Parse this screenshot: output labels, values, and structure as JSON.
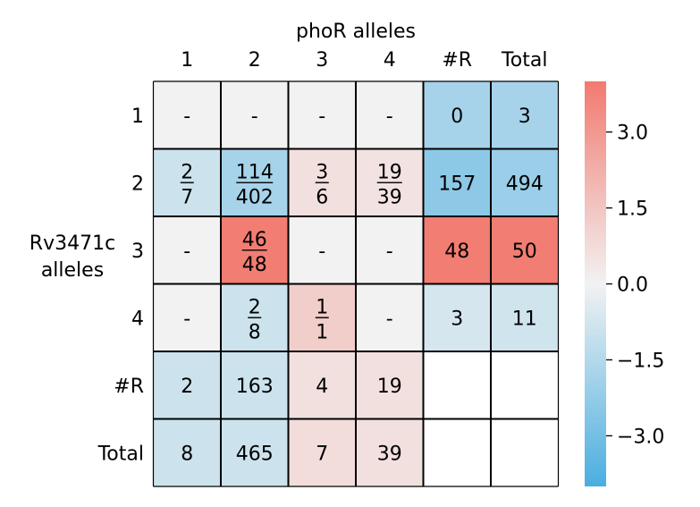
{
  "chart_data": {
    "type": "heatmap",
    "title": "phoR alleles",
    "xlabel": "phoR alleles",
    "ylabel_lines": [
      "Rv3471c",
      "alleles"
    ],
    "col_labels": [
      "1",
      "2",
      "3",
      "4",
      "#R",
      "Total"
    ],
    "row_labels": [
      "1",
      "2",
      "3",
      "4",
      "#R",
      "Total"
    ],
    "cells": [
      [
        {
          "text": "-",
          "score": 0
        },
        {
          "text": "-",
          "score": 0
        },
        {
          "text": "-",
          "score": 0
        },
        {
          "text": "-",
          "score": 0
        },
        {
          "text": "0",
          "score": -1.8
        },
        {
          "text": "3",
          "score": -1.8
        }
      ],
      [
        {
          "num": "2",
          "den": "7",
          "score": -0.9
        },
        {
          "num": "114",
          "den": "402",
          "score": -1.8
        },
        {
          "num": "3",
          "den": "6",
          "score": 0.6
        },
        {
          "num": "19",
          "den": "39",
          "score": 0.5
        },
        {
          "text": "157",
          "score": -2.4
        },
        {
          "text": "494",
          "score": -2.1
        }
      ],
      [
        {
          "text": "-",
          "score": 0
        },
        {
          "num": "46",
          "den": "48",
          "score": 3.9
        },
        {
          "text": "-",
          "score": 0
        },
        {
          "text": "-",
          "score": 0
        },
        {
          "text": "48",
          "score": 3.9
        },
        {
          "text": "50",
          "score": 3.9
        }
      ],
      [
        {
          "text": "-",
          "score": 0
        },
        {
          "num": "2",
          "den": "8",
          "score": -0.9
        },
        {
          "num": "1",
          "den": "1",
          "score": 1.2
        },
        {
          "text": "-",
          "score": 0
        },
        {
          "text": "3",
          "score": -0.7
        },
        {
          "text": "11",
          "score": -0.8
        }
      ],
      [
        {
          "text": "2",
          "score": -0.9
        },
        {
          "text": "163",
          "score": -0.9
        },
        {
          "text": "4",
          "score": 0.6
        },
        {
          "text": "19",
          "score": 0.6
        },
        {
          "text": "",
          "score": null
        },
        {
          "text": "",
          "score": null
        }
      ],
      [
        {
          "text": "8",
          "score": -0.9
        },
        {
          "text": "465",
          "score": -0.9
        },
        {
          "text": "7",
          "score": 0.7
        },
        {
          "text": "39",
          "score": 0.6
        },
        {
          "text": "",
          "score": null
        },
        {
          "text": "",
          "score": null
        }
      ]
    ],
    "colorbar": {
      "min": -4.0,
      "max": 4.0,
      "ticks": [
        3.0,
        1.5,
        0.0,
        -1.5,
        -3.0
      ],
      "tick_labels": [
        "3.0",
        "1.5",
        "0.0",
        "−1.5",
        "−3.0"
      ],
      "color_low": "#4aaee0",
      "color_mid": "#f2f2f2",
      "color_high": "#f27a70"
    }
  }
}
